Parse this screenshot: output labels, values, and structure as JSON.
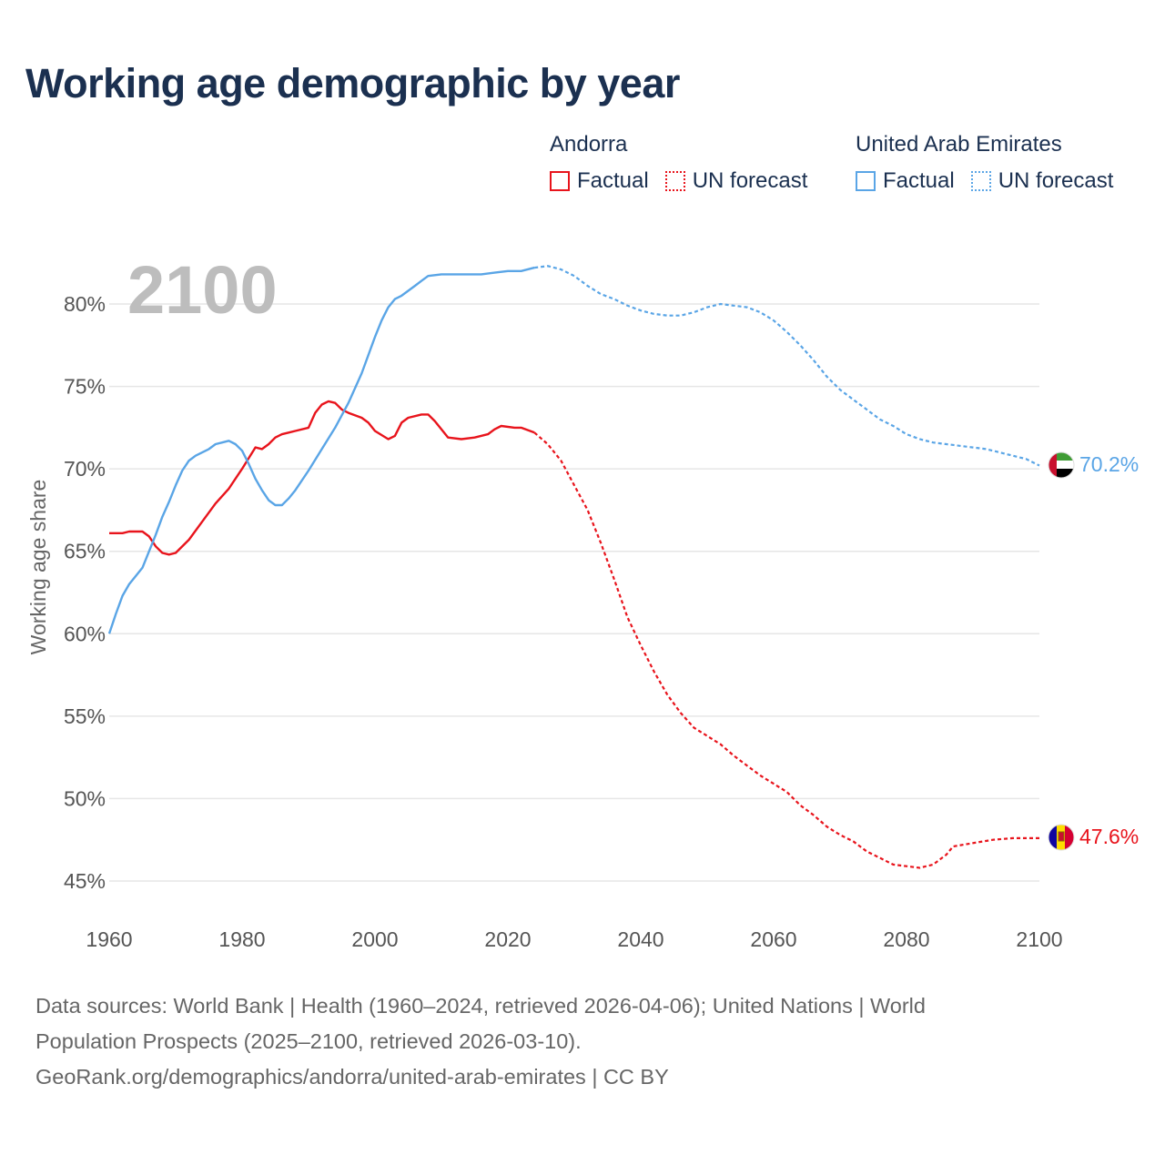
{
  "title": "Working age demographic by year",
  "legend": [
    {
      "country": "Andorra",
      "color": "#e8141c",
      "factual_label": "Factual",
      "forecast_label": "UN forecast"
    },
    {
      "country": "United Arab Emirates",
      "color": "#5aa5e6",
      "factual_label": "Factual",
      "forecast_label": "UN forecast"
    }
  ],
  "footer": {
    "line1": "Data sources: World Bank | Health (1960–2024, retrieved 2026-04-06); United Nations | World",
    "line2": "Population Prospects (2025–2100, retrieved 2026-03-10).",
    "line3": "GeoRank.org/demographics/andorra/united-arab-emirates | CC BY"
  },
  "chart_data": {
    "type": "line",
    "title": "Working age demographic by year",
    "year_display": "2100",
    "xlabel": "",
    "ylabel": "Working age share",
    "xlim": [
      1960,
      2100
    ],
    "ylim": [
      43,
      83
    ],
    "x_ticks": [
      1960,
      1980,
      2000,
      2020,
      2040,
      2060,
      2080,
      2100
    ],
    "y_ticks": [
      45,
      50,
      55,
      60,
      65,
      70,
      75,
      80
    ],
    "y_tick_suffix": "%",
    "grid": true,
    "factual_end_year": 2024,
    "series": [
      {
        "name": "Andorra",
        "color": "#e8141c",
        "end_label": "47.6%",
        "flag": "andorra-flag",
        "points": [
          [
            1960,
            66.1
          ],
          [
            1962,
            66.1
          ],
          [
            1963,
            66.2
          ],
          [
            1965,
            66.2
          ],
          [
            1966,
            65.9
          ],
          [
            1967,
            65.3
          ],
          [
            1968,
            64.9
          ],
          [
            1969,
            64.8
          ],
          [
            1970,
            64.9
          ],
          [
            1972,
            65.7
          ],
          [
            1974,
            66.8
          ],
          [
            1976,
            67.9
          ],
          [
            1978,
            68.8
          ],
          [
            1980,
            70.0
          ],
          [
            1982,
            71.3
          ],
          [
            1983,
            71.2
          ],
          [
            1984,
            71.5
          ],
          [
            1985,
            71.9
          ],
          [
            1986,
            72.1
          ],
          [
            1987,
            72.2
          ],
          [
            1988,
            72.3
          ],
          [
            1990,
            72.5
          ],
          [
            1991,
            73.4
          ],
          [
            1992,
            73.9
          ],
          [
            1993,
            74.1
          ],
          [
            1994,
            74.0
          ],
          [
            1995,
            73.6
          ],
          [
            1996,
            73.4
          ],
          [
            1998,
            73.1
          ],
          [
            1999,
            72.8
          ],
          [
            2000,
            72.3
          ],
          [
            2002,
            71.8
          ],
          [
            2003,
            72.0
          ],
          [
            2004,
            72.8
          ],
          [
            2005,
            73.1
          ],
          [
            2007,
            73.3
          ],
          [
            2008,
            73.3
          ],
          [
            2009,
            72.9
          ],
          [
            2011,
            71.9
          ],
          [
            2013,
            71.8
          ],
          [
            2015,
            71.9
          ],
          [
            2017,
            72.1
          ],
          [
            2018,
            72.4
          ],
          [
            2019,
            72.6
          ],
          [
            2021,
            72.5
          ],
          [
            2022,
            72.5
          ],
          [
            2024,
            72.2
          ],
          [
            2026,
            71.5
          ],
          [
            2028,
            70.5
          ],
          [
            2030,
            69.0
          ],
          [
            2032,
            67.5
          ],
          [
            2034,
            65.5
          ],
          [
            2036,
            63.3
          ],
          [
            2038,
            61.0
          ],
          [
            2040,
            59.3
          ],
          [
            2042,
            57.7
          ],
          [
            2044,
            56.3
          ],
          [
            2046,
            55.2
          ],
          [
            2048,
            54.3
          ],
          [
            2050,
            53.8
          ],
          [
            2052,
            53.3
          ],
          [
            2054,
            52.6
          ],
          [
            2056,
            52.0
          ],
          [
            2058,
            51.4
          ],
          [
            2060,
            50.9
          ],
          [
            2062,
            50.4
          ],
          [
            2064,
            49.6
          ],
          [
            2066,
            49.0
          ],
          [
            2068,
            48.3
          ],
          [
            2070,
            47.8
          ],
          [
            2072,
            47.4
          ],
          [
            2074,
            46.8
          ],
          [
            2076,
            46.4
          ],
          [
            2078,
            46.0
          ],
          [
            2080,
            45.9
          ],
          [
            2082,
            45.8
          ],
          [
            2084,
            46.0
          ],
          [
            2086,
            46.6
          ],
          [
            2087,
            47.1
          ],
          [
            2090,
            47.3
          ],
          [
            2093,
            47.5
          ],
          [
            2096,
            47.6
          ],
          [
            2100,
            47.6
          ]
        ]
      },
      {
        "name": "United Arab Emirates",
        "color": "#5aa5e6",
        "end_label": "70.2%",
        "flag": "uae-flag",
        "points": [
          [
            1960,
            60.0
          ],
          [
            1961,
            61.2
          ],
          [
            1962,
            62.3
          ],
          [
            1963,
            63.0
          ],
          [
            1965,
            64.0
          ],
          [
            1966,
            65.0
          ],
          [
            1967,
            66.0
          ],
          [
            1968,
            67.1
          ],
          [
            1969,
            68.0
          ],
          [
            1970,
            69.0
          ],
          [
            1971,
            69.9
          ],
          [
            1972,
            70.5
          ],
          [
            1973,
            70.8
          ],
          [
            1975,
            71.2
          ],
          [
            1976,
            71.5
          ],
          [
            1977,
            71.6
          ],
          [
            1978,
            71.7
          ],
          [
            1979,
            71.5
          ],
          [
            1980,
            71.1
          ],
          [
            1981,
            70.3
          ],
          [
            1982,
            69.4
          ],
          [
            1983,
            68.7
          ],
          [
            1984,
            68.1
          ],
          [
            1985,
            67.8
          ],
          [
            1986,
            67.8
          ],
          [
            1987,
            68.2
          ],
          [
            1988,
            68.7
          ],
          [
            1990,
            69.9
          ],
          [
            1992,
            71.2
          ],
          [
            1994,
            72.5
          ],
          [
            1996,
            74.0
          ],
          [
            1998,
            75.8
          ],
          [
            2000,
            78.0
          ],
          [
            2001,
            79.0
          ],
          [
            2002,
            79.8
          ],
          [
            2003,
            80.3
          ],
          [
            2004,
            80.5
          ],
          [
            2005,
            80.8
          ],
          [
            2006,
            81.1
          ],
          [
            2007,
            81.4
          ],
          [
            2008,
            81.7
          ],
          [
            2010,
            81.8
          ],
          [
            2012,
            81.8
          ],
          [
            2014,
            81.8
          ],
          [
            2016,
            81.8
          ],
          [
            2018,
            81.9
          ],
          [
            2020,
            82.0
          ],
          [
            2022,
            82.0
          ],
          [
            2024,
            82.2
          ],
          [
            2026,
            82.3
          ],
          [
            2028,
            82.1
          ],
          [
            2030,
            81.7
          ],
          [
            2032,
            81.1
          ],
          [
            2034,
            80.6
          ],
          [
            2036,
            80.3
          ],
          [
            2038,
            79.9
          ],
          [
            2040,
            79.6
          ],
          [
            2042,
            79.4
          ],
          [
            2044,
            79.3
          ],
          [
            2046,
            79.3
          ],
          [
            2048,
            79.5
          ],
          [
            2050,
            79.8
          ],
          [
            2052,
            80.0
          ],
          [
            2054,
            79.9
          ],
          [
            2056,
            79.8
          ],
          [
            2058,
            79.5
          ],
          [
            2060,
            79.0
          ],
          [
            2062,
            78.3
          ],
          [
            2064,
            77.5
          ],
          [
            2066,
            76.6
          ],
          [
            2068,
            75.6
          ],
          [
            2070,
            74.8
          ],
          [
            2072,
            74.2
          ],
          [
            2074,
            73.6
          ],
          [
            2076,
            73.0
          ],
          [
            2078,
            72.6
          ],
          [
            2080,
            72.1
          ],
          [
            2082,
            71.8
          ],
          [
            2084,
            71.6
          ],
          [
            2086,
            71.5
          ],
          [
            2088,
            71.4
          ],
          [
            2090,
            71.3
          ],
          [
            2092,
            71.2
          ],
          [
            2094,
            71.0
          ],
          [
            2096,
            70.8
          ],
          [
            2098,
            70.6
          ],
          [
            2100,
            70.2
          ]
        ]
      }
    ]
  }
}
